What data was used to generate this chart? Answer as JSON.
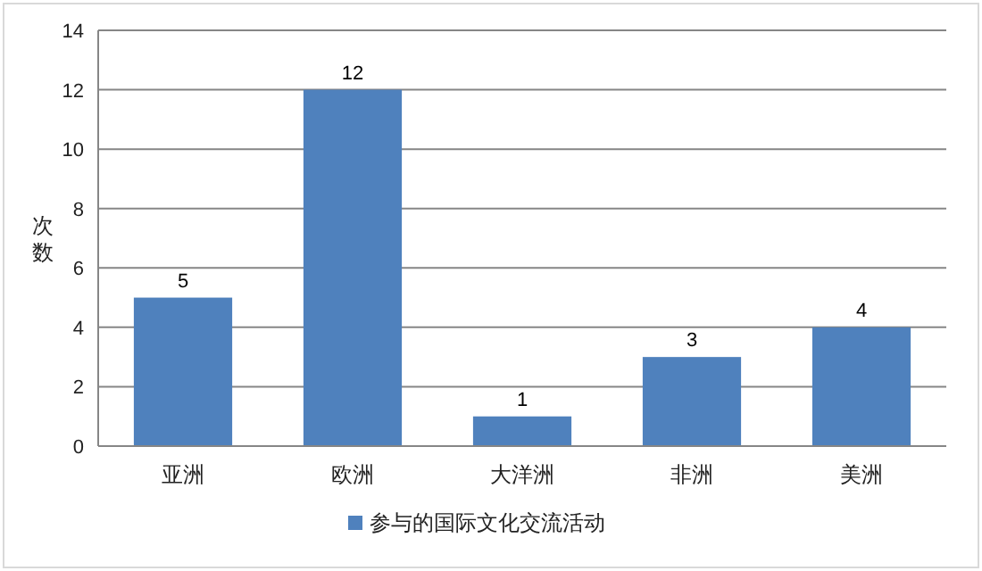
{
  "chart_data": {
    "type": "bar",
    "categories": [
      "亚洲",
      "欧洲",
      "大洋洲",
      "非洲",
      "美洲"
    ],
    "series": [
      {
        "name": "参与的国际文化交流活动",
        "color": "#4f81bd",
        "values": [
          5,
          12,
          1,
          3,
          4
        ]
      }
    ],
    "ylabel": "次数",
    "ylim": [
      0,
      14
    ],
    "yticks": [
      0,
      2,
      4,
      6,
      8,
      10,
      12,
      14
    ],
    "grid": "y",
    "legend": "bottom",
    "data_labels": true
  }
}
